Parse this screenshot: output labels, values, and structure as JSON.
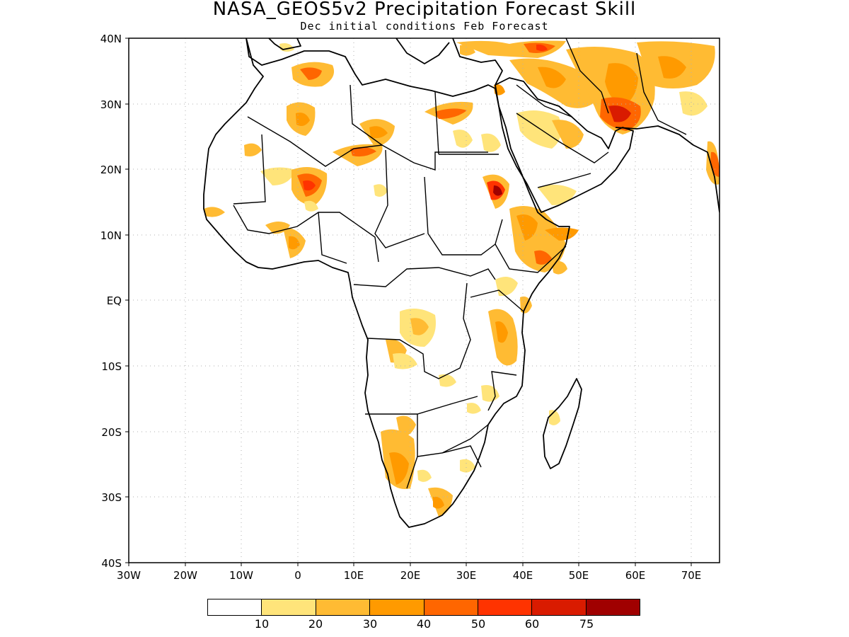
{
  "title": "NASA_GEOS5v2 Precipitation Forecast Skill",
  "subtitle": "Dec initial conditions  Feb Forecast",
  "map": {
    "region": "Africa and Arabian Peninsula",
    "lon_range": [
      -30,
      75
    ],
    "lat_range": [
      -40,
      40
    ],
    "grid": "dotted",
    "lat_ticks": [
      "40N",
      "30N",
      "20N",
      "10N",
      "EQ",
      "10S",
      "20S",
      "30S",
      "40S"
    ],
    "lon_ticks": [
      "30W",
      "20W",
      "10W",
      "0",
      "10E",
      "20E",
      "30E",
      "40E",
      "50E",
      "60E",
      "70E"
    ]
  },
  "colorbar": {
    "colors": [
      "#ffffff",
      "#ffe47a",
      "#ffbb33",
      "#ff9a00",
      "#ff6600",
      "#ff3300",
      "#d91b00",
      "#a00000"
    ],
    "labels": [
      "10",
      "20",
      "30",
      "40",
      "50",
      "60",
      "75"
    ]
  }
}
